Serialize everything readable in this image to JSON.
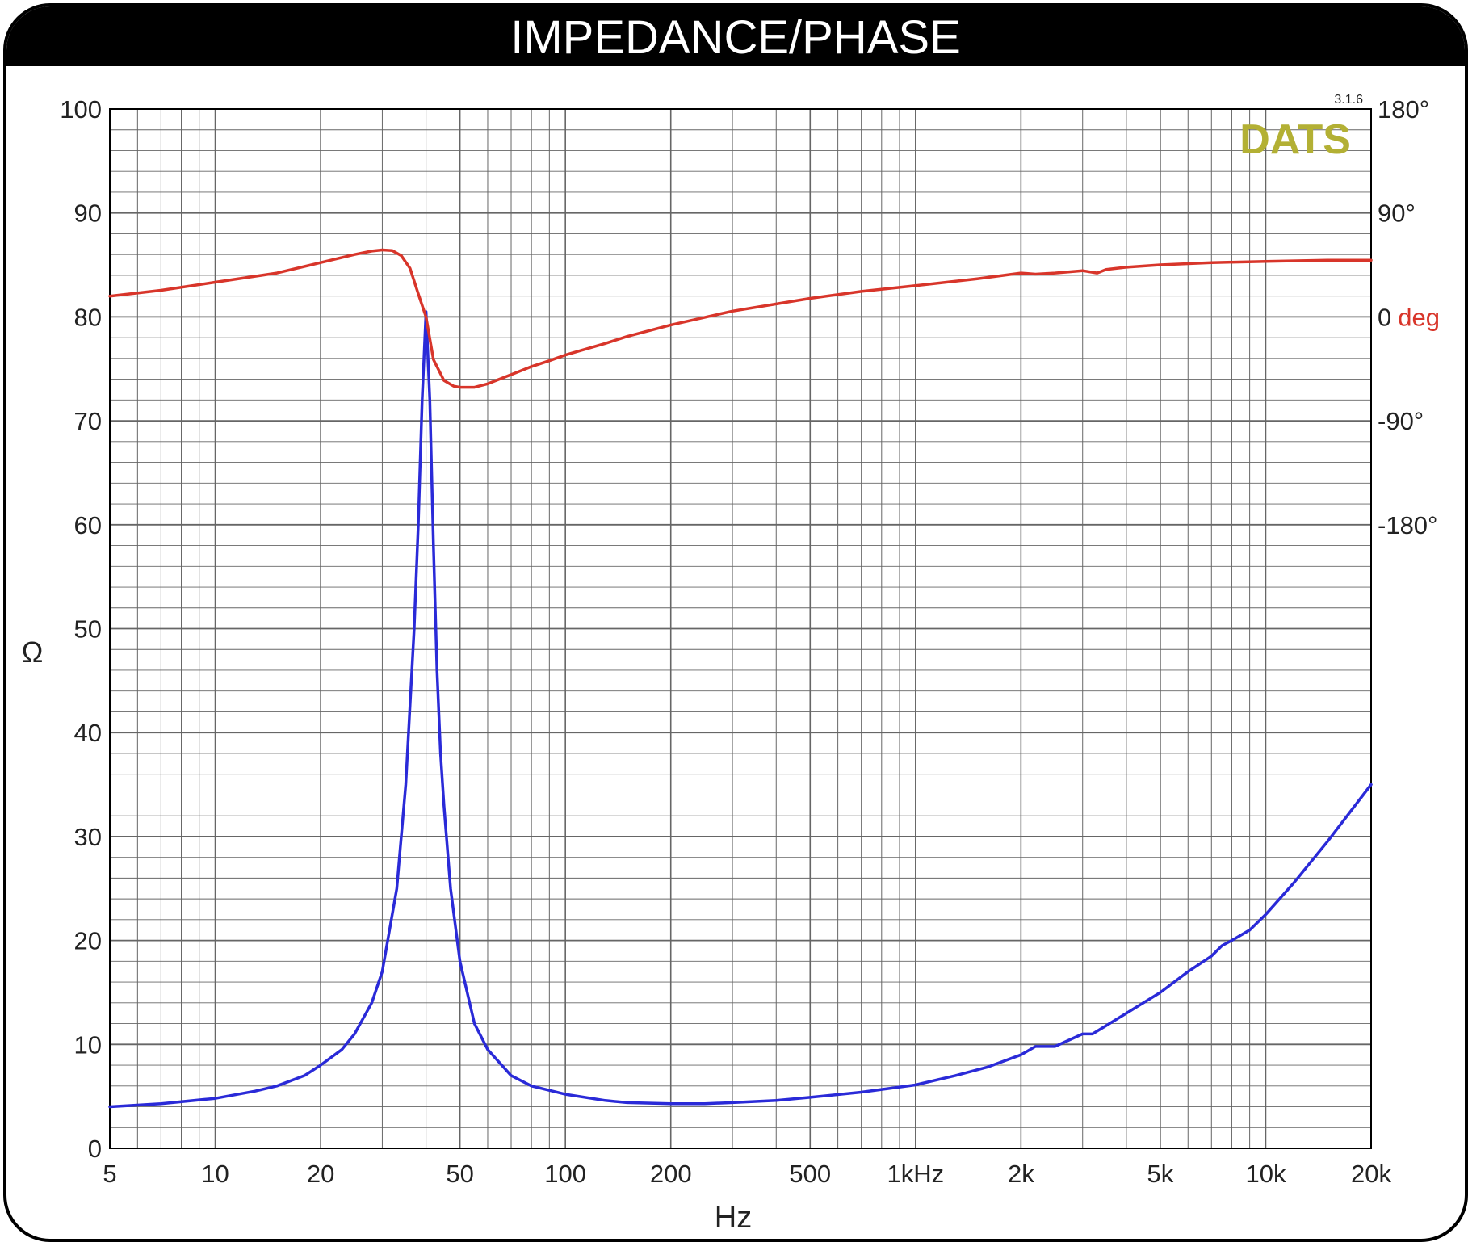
{
  "colors": {
    "frame": "#000000",
    "grid": "#666666",
    "impedance": "#2a2ad8",
    "phase": "#d8352a",
    "logo": "#b3b034"
  },
  "logo": {
    "text": "DATS",
    "version": "3.1.6"
  },
  "chart_data": {
    "type": "line",
    "title": "IMPEDANCE/PHASE",
    "xlabel": "Hz",
    "ylabel": "Ω",
    "xscale": "log",
    "xlim": [
      5,
      20000
    ],
    "ylim": [
      0,
      100
    ],
    "y2lim": [
      -180,
      180
    ],
    "grid": true,
    "x_ticks": [
      {
        "value": 5,
        "label": "5"
      },
      {
        "value": 10,
        "label": "10"
      },
      {
        "value": 20,
        "label": "20"
      },
      {
        "value": 50,
        "label": "50"
      },
      {
        "value": 100,
        "label": "100"
      },
      {
        "value": 200,
        "label": "200"
      },
      {
        "value": 500,
        "label": "500"
      },
      {
        "value": 1000,
        "label": "1kHz"
      },
      {
        "value": 2000,
        "label": "2k"
      },
      {
        "value": 5000,
        "label": "5k"
      },
      {
        "value": 10000,
        "label": "10k"
      },
      {
        "value": 20000,
        "label": "20k"
      }
    ],
    "y_ticks": [
      {
        "value": 0,
        "label": "0"
      },
      {
        "value": 10,
        "label": "10"
      },
      {
        "value": 20,
        "label": "20"
      },
      {
        "value": 30,
        "label": "30"
      },
      {
        "value": 40,
        "label": "40"
      },
      {
        "value": 50,
        "label": "50"
      },
      {
        "value": 60,
        "label": "60"
      },
      {
        "value": 70,
        "label": "70"
      },
      {
        "value": 80,
        "label": "80"
      },
      {
        "value": 90,
        "label": "90"
      },
      {
        "value": 100,
        "label": "100"
      }
    ],
    "y2_ticks": [
      {
        "value": 180,
        "label": "180°"
      },
      {
        "value": 90,
        "label": "90°"
      },
      {
        "value": 0,
        "label": "0",
        "suffix": "deg"
      },
      {
        "value": -90,
        "label": "-90°"
      },
      {
        "value": -180,
        "label": "-180°"
      }
    ],
    "series": [
      {
        "axis": "left",
        "x": [
          5,
          7,
          10,
          13,
          15,
          18,
          20,
          23,
          25,
          28,
          30,
          33,
          35,
          37,
          38,
          39,
          40,
          41,
          42,
          43,
          44,
          45,
          47,
          50,
          55,
          60,
          70,
          80,
          100,
          130,
          150,
          200,
          250,
          300,
          400,
          500,
          700,
          1000,
          1300,
          1600,
          2000,
          2200,
          2500,
          3000,
          3200,
          3500,
          4000,
          5000,
          6000,
          7000,
          7500,
          8000,
          9000,
          10000,
          12000,
          15000,
          20000
        ],
        "values": [
          4.0,
          4.3,
          4.8,
          5.5,
          6.0,
          7.0,
          8.0,
          9.5,
          11.0,
          14.0,
          17.0,
          25.0,
          35.0,
          50.0,
          60.0,
          72.0,
          80.5,
          72.0,
          58.0,
          46.0,
          38.0,
          33.0,
          25.0,
          18.0,
          12.0,
          9.5,
          7.0,
          6.0,
          5.2,
          4.6,
          4.4,
          4.3,
          4.3,
          4.4,
          4.6,
          4.9,
          5.4,
          6.1,
          7.0,
          7.8,
          9.0,
          9.8,
          9.8,
          11.0,
          11.0,
          11.8,
          13.0,
          15.0,
          17.0,
          18.5,
          19.5,
          20.0,
          21.0,
          22.5,
          25.5,
          29.5,
          35.0
        ]
      },
      {
        "axis": "right",
        "x": [
          5,
          7,
          10,
          15,
          20,
          25,
          28,
          30,
          32,
          34,
          36,
          38,
          40,
          42,
          45,
          48,
          50,
          55,
          60,
          70,
          80,
          90,
          100,
          130,
          150,
          200,
          300,
          500,
          700,
          1000,
          1500,
          2000,
          2200,
          2500,
          3000,
          3300,
          3500,
          4000,
          5000,
          7000,
          10000,
          15000,
          20000
        ],
        "values": [
          18,
          23,
          30,
          38,
          47,
          54,
          57,
          58,
          57.5,
          53,
          42,
          20,
          0,
          -37,
          -55,
          -60,
          -61,
          -61,
          -58,
          -50,
          -43,
          -38,
          -33,
          -23,
          -17,
          -7,
          5,
          16,
          22,
          27,
          33,
          38,
          37,
          38,
          40,
          38,
          41,
          43,
          45,
          47,
          48,
          49,
          49
        ]
      }
    ]
  }
}
